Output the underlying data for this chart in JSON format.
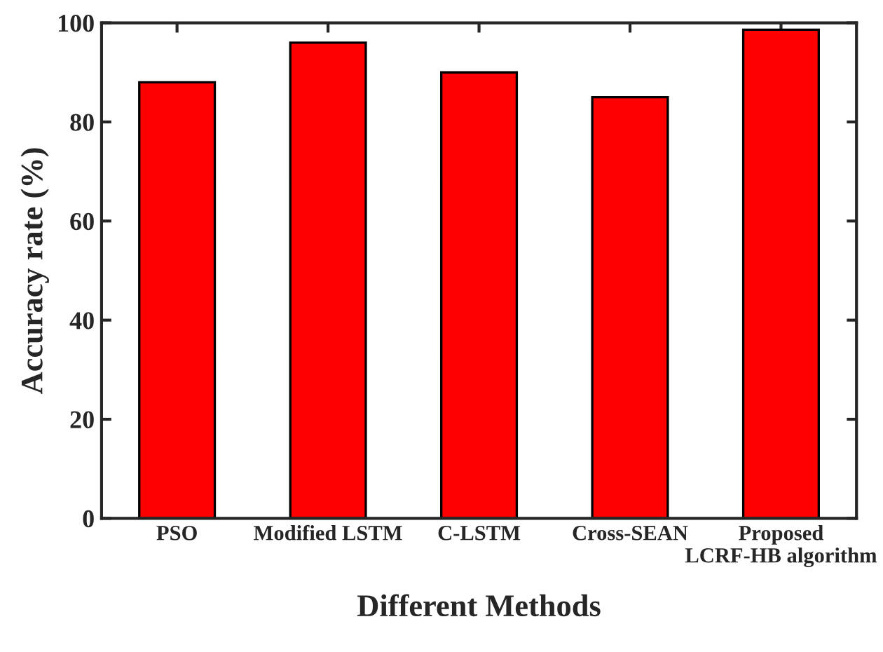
{
  "chart_data": {
    "type": "bar",
    "xlabel": "Different Methods",
    "ylabel": "Accuracy rate (%)",
    "categories": [
      "PSO",
      "Modified LSTM",
      "C-LSTM",
      "Cross-SEAN",
      "Proposed\nLCRF-HB algorithm"
    ],
    "values": [
      88,
      96,
      90,
      85,
      98.6
    ],
    "color": "#ff0000",
    "ylim": [
      0,
      100
    ],
    "yticks": [
      0,
      20,
      40,
      60,
      80,
      100
    ],
    "grid": false,
    "legend": false
  }
}
